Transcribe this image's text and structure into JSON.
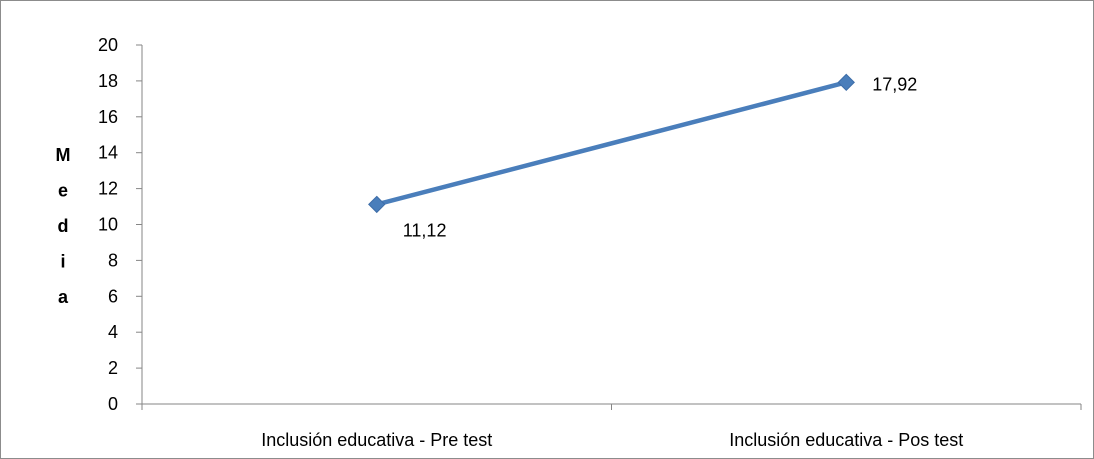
{
  "chart_data": {
    "type": "line",
    "categories": [
      "Inclusión educativa - Pre test",
      "Inclusión educativa - Pos test"
    ],
    "series": [
      {
        "values": [
          11.12,
          17.92
        ]
      }
    ],
    "data_labels": [
      "11,12",
      "17,92"
    ],
    "ylabel": "Media",
    "xlabel": "",
    "title": "",
    "ylim": [
      0,
      20
    ],
    "ytick_step": 2,
    "yticks": [
      "0",
      "2",
      "4",
      "6",
      "8",
      "10",
      "12",
      "14",
      "16",
      "18",
      "20"
    ],
    "grid": false,
    "legend": "none",
    "marker": "diamond"
  },
  "colors": {
    "series": "#4a7ebb",
    "marker": "#4a7ebb",
    "axis": "#868686",
    "frame": "#8c8c8c"
  }
}
